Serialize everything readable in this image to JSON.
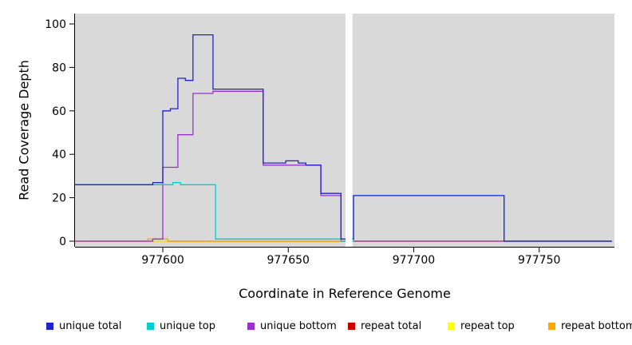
{
  "chart_data": {
    "type": "line",
    "step": "after",
    "title": "",
    "xlabel": "Coordinate in Reference Genome",
    "ylabel": "Read Coverage Depth",
    "xlim": [
      977565,
      977780
    ],
    "ylim": [
      0,
      100
    ],
    "xticks": [
      977600,
      977650,
      977700,
      977750
    ],
    "yticks": [
      0,
      20,
      40,
      60,
      80,
      100
    ],
    "panel_background": "#d9d9d9",
    "grid": "off",
    "legend_position": "bottom",
    "no_data_gap": {
      "x_start": 977672.8,
      "x_end": 977675.6
    },
    "draw_order": [
      3,
      4,
      5,
      2,
      1,
      0
    ],
    "series": [
      {
        "name": "unique total",
        "color": "#2222CC",
        "points": [
          [
            977565,
            26
          ],
          [
            977596,
            27
          ],
          [
            977600,
            60
          ],
          [
            977603,
            61
          ],
          [
            977606,
            75
          ],
          [
            977609,
            74
          ],
          [
            977612,
            95
          ],
          [
            977620,
            70
          ],
          [
            977640,
            36
          ],
          [
            977649,
            37
          ],
          [
            977654,
            36
          ],
          [
            977657,
            35
          ],
          [
            977663,
            22
          ],
          [
            977671,
            1
          ],
          [
            977676,
            21
          ],
          [
            977736,
            0
          ],
          [
            977779,
            0
          ]
        ]
      },
      {
        "name": "unique top",
        "color": "#00CDCD",
        "points": [
          [
            977565,
            26
          ],
          [
            977604,
            27
          ],
          [
            977607,
            26
          ],
          [
            977621,
            1
          ],
          [
            977671,
            0
          ],
          [
            977676,
            21
          ],
          [
            977736,
            0
          ],
          [
            977779,
            0
          ]
        ]
      },
      {
        "name": "unique bottom",
        "color": "#9932CC",
        "points": [
          [
            977565,
            0
          ],
          [
            977596,
            1
          ],
          [
            977600,
            34
          ],
          [
            977606,
            49
          ],
          [
            977612,
            68
          ],
          [
            977620,
            69
          ],
          [
            977640,
            35
          ],
          [
            977663,
            21
          ],
          [
            977671,
            0
          ],
          [
            977779,
            0
          ]
        ]
      },
      {
        "name": "repeat total",
        "color": "#CD0000",
        "points": [
          [
            977565,
            0
          ],
          [
            977779,
            0
          ]
        ]
      },
      {
        "name": "repeat top",
        "color": "#FFFF00",
        "points": [
          [
            977565,
            0
          ],
          [
            977779,
            0
          ]
        ]
      },
      {
        "name": "repeat bottom",
        "color": "#FFA500",
        "points": [
          [
            977565,
            0
          ],
          [
            977594,
            1
          ],
          [
            977602,
            0
          ],
          [
            977779,
            0
          ]
        ]
      }
    ]
  }
}
